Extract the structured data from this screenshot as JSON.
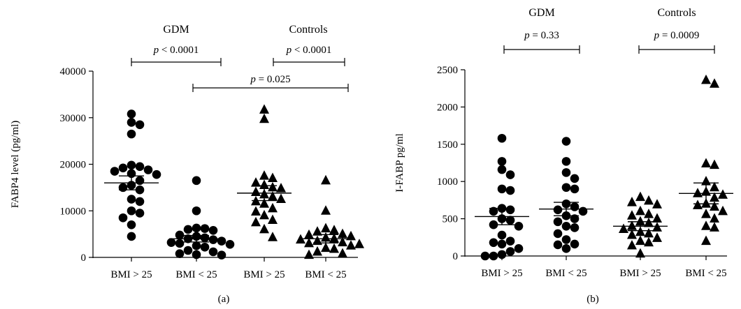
{
  "chart_data": [
    {
      "type": "scatter",
      "panel_label": "(a)",
      "ylabel": "FABP4 level (pg/ml)",
      "ylim": [
        0,
        40000
      ],
      "yticks": [
        "0",
        "10000",
        "20000",
        "30000",
        "40000"
      ],
      "categories": [
        "BMI > 25",
        "BMI < 25",
        "BMI > 25",
        "BMI < 25"
      ],
      "groups": [
        {
          "label": "GDM",
          "category_indices": [
            0,
            1
          ]
        },
        {
          "label": "Controls",
          "category_indices": [
            2,
            3
          ]
        }
      ],
      "series": [
        {
          "marker": "circle",
          "category": 0,
          "mean": 16000,
          "sem": 1500,
          "values": [
            30800,
            29000,
            28500,
            26500,
            19800,
            19500,
            19200,
            18800,
            18500,
            18000,
            17800,
            16500,
            15500,
            15000,
            14500,
            12500,
            12000,
            10000,
            9500,
            8500,
            7000,
            4500
          ]
        },
        {
          "marker": "circle",
          "category": 1,
          "mean": 4000,
          "sem": 700,
          "values": [
            16500,
            10000,
            6300,
            6200,
            6000,
            5800,
            4800,
            4500,
            4200,
            4000,
            3800,
            3500,
            3200,
            3000,
            2800,
            2500,
            2200,
            1500,
            1200,
            800,
            600,
            500
          ]
        },
        {
          "marker": "triangle",
          "category": 2,
          "mean": 13800,
          "sem": 1600,
          "values": [
            31700,
            29700,
            17500,
            17000,
            16000,
            15500,
            15000,
            14800,
            14000,
            13500,
            13000,
            12500,
            12000,
            11500,
            10500,
            9800,
            9000,
            8000,
            7500,
            6000,
            4300
          ]
        },
        {
          "marker": "triangle",
          "category": 3,
          "mean": 4000,
          "sem": 900,
          "values": [
            16500,
            10000,
            6200,
            5800,
            5500,
            5000,
            4800,
            4500,
            4200,
            4000,
            3800,
            3500,
            3200,
            3000,
            2800,
            2500,
            2000,
            1800,
            1200,
            800,
            500
          ]
        }
      ],
      "comparisons": [
        {
          "from": 0,
          "to": 1,
          "label": "p < 0.0001"
        },
        {
          "from": 2,
          "to": 3,
          "label": "p < 0.0001"
        },
        {
          "from": 1,
          "to": 3,
          "label": "p = 0.025"
        }
      ]
    },
    {
      "type": "scatter",
      "panel_label": "(b)",
      "ylabel": "I-FABP pg/ml",
      "ylim": [
        0,
        2500
      ],
      "yticks": [
        "0",
        "500",
        "1000",
        "1500",
        "2000",
        "2500"
      ],
      "categories": [
        "BMI > 25",
        "BMI < 25",
        "BMI > 25",
        "BMI < 25"
      ],
      "groups": [
        {
          "label": "GDM",
          "category_indices": [
            0,
            1
          ]
        },
        {
          "label": "Controls",
          "category_indices": [
            2,
            3
          ]
        }
      ],
      "series": [
        {
          "marker": "circle",
          "category": 0,
          "mean": 530,
          "sem": 110,
          "values": [
            1580,
            1270,
            1160,
            1090,
            900,
            880,
            640,
            620,
            600,
            500,
            480,
            420,
            400,
            280,
            200,
            180,
            160,
            100,
            60,
            20,
            0,
            0
          ]
        },
        {
          "marker": "circle",
          "category": 1,
          "mean": 630,
          "sem": 90,
          "values": [
            1540,
            1270,
            1120,
            1040,
            920,
            900,
            700,
            660,
            620,
            600,
            540,
            500,
            460,
            400,
            380,
            300,
            220,
            160,
            150,
            100
          ]
        },
        {
          "marker": "triangle",
          "category": 2,
          "mean": 400,
          "sem": 60,
          "values": [
            790,
            740,
            720,
            690,
            600,
            560,
            540,
            500,
            460,
            440,
            400,
            380,
            360,
            320,
            300,
            280,
            240,
            200,
            180,
            140,
            30
          ]
        },
        {
          "marker": "triangle",
          "category": 3,
          "mean": 840,
          "sem": 140,
          "values": [
            2360,
            2310,
            1240,
            1220,
            1000,
            920,
            860,
            840,
            820,
            780,
            700,
            680,
            660,
            600,
            560,
            500,
            400,
            380,
            200
          ]
        }
      ],
      "comparisons": [
        {
          "from": 0,
          "to": 1,
          "label": "p = 0.33"
        },
        {
          "from": 2,
          "to": 3,
          "label": "p = 0.0009"
        }
      ]
    }
  ]
}
